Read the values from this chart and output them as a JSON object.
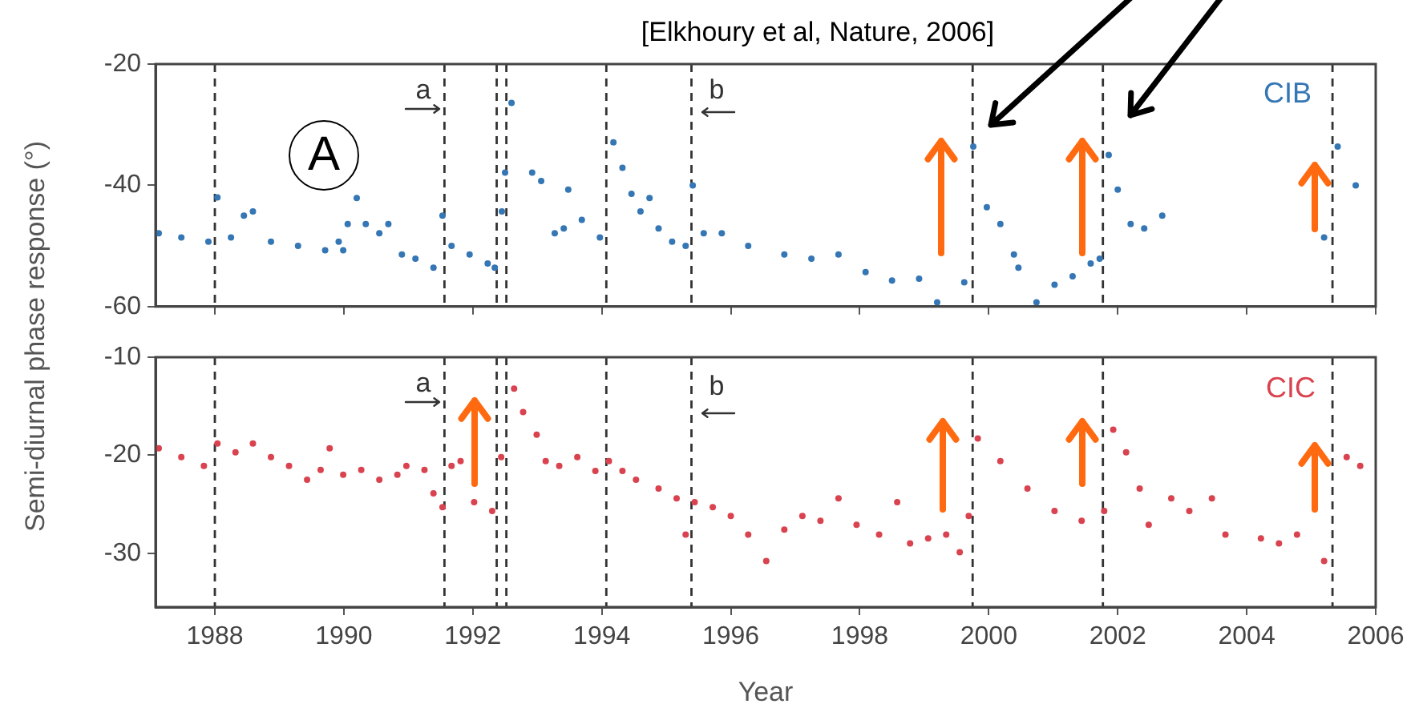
{
  "chart_data": [
    {
      "type": "scatter",
      "ylabel": "Semi-diurnal phase response (°)",
      "tick_labels": "y",
      "marker": "circle",
      "color": "#3576b4",
      "xlim": [
        1987.08,
        2006
      ],
      "xticks": [
        1988,
        1990,
        1992,
        1994,
        1996,
        1998,
        2000,
        2002,
        2004,
        2006
      ],
      "ylim": [
        -60,
        -20
      ],
      "yticks": [
        -60,
        -40,
        -20
      ],
      "x": [
        1987.13,
        1987.48,
        1987.9,
        1988.04,
        1988.25,
        1988.45,
        1988.59,
        1988.87,
        1989.29,
        1989.71,
        1989.92,
        1989.99,
        1990.06,
        1990.2,
        1990.34,
        1990.55,
        1990.69,
        1990.9,
        1991.11,
        1991.39,
        1991.53,
        1991.67,
        1991.95,
        1992.23,
        1992.34,
        1992.45,
        1992.5,
        1992.6,
        1992.92,
        1993.06,
        1993.27,
        1993.41,
        1993.48,
        1993.69,
        1993.97,
        1994.18,
        1994.32,
        1994.46,
        1994.6,
        1994.74,
        1994.88,
        1995.09,
        1995.3,
        1995.41,
        1995.58,
        1995.86,
        1996.27,
        1996.83,
        1997.25,
        1997.67,
        1998.09,
        1998.5,
        1998.92,
        1999.2,
        1999.62,
        1999.76,
        1999.97,
        2000.18,
        2000.39,
        2000.46,
        2000.74,
        2001.02,
        2001.3,
        2001.58,
        2001.72,
        2001.86,
        2002.0,
        2002.2,
        2002.41,
        2002.69,
        2005.2,
        2005.41,
        2005.69
      ],
      "values": [
        -47.9,
        -48.6,
        -49.3,
        -42,
        -48.6,
        -45,
        -44.3,
        -49.3,
        -50,
        -50.7,
        -49.3,
        -50.7,
        -46.4,
        -42.1,
        -46.4,
        -47.9,
        -46.4,
        -51.4,
        -52.1,
        -53.6,
        -45,
        -50,
        -51.4,
        -52.9,
        -53.6,
        -44.3,
        -37.9,
        -26.4,
        -37.9,
        -39.3,
        -47.9,
        -47.1,
        -40.7,
        -45.7,
        -48.6,
        -32.9,
        -37.1,
        -41.4,
        -44.3,
        -42.1,
        -47.1,
        -49.3,
        -50,
        -40,
        -47.9,
        -47.9,
        -50,
        -51.4,
        -52.1,
        -51.4,
        -54.3,
        -55.7,
        -55.4,
        -59.3,
        -56,
        -33.6,
        -43.6,
        -46.4,
        -51.4,
        -53.6,
        -59.3,
        -56.4,
        -55,
        -52.9,
        -52.1,
        -35,
        -40.7,
        -46.4,
        -47.1,
        -45,
        -48.6,
        -33.6,
        -40
      ],
      "ref_lines": [
        {
          "axis": "x",
          "value": 1988.0,
          "line_style": "dashed",
          "color": "#333333"
        },
        {
          "axis": "x",
          "value": 1991.56,
          "line_style": "dashed",
          "color": "#333333"
        },
        {
          "axis": "x",
          "value": 1992.37,
          "line_style": "dashed",
          "color": "#333333"
        },
        {
          "axis": "x",
          "value": 1992.52,
          "line_style": "dashed",
          "color": "#333333"
        },
        {
          "axis": "x",
          "value": 1994.07,
          "line_style": "dashed",
          "color": "#333333"
        },
        {
          "axis": "x",
          "value": 1995.39,
          "line_style": "dashed",
          "color": "#333333"
        },
        {
          "axis": "x",
          "value": 1999.75,
          "line_style": "dashed",
          "color": "#333333"
        },
        {
          "axis": "x",
          "value": 2001.77,
          "line_style": "dashed",
          "color": "#333333"
        },
        {
          "axis": "x",
          "value": 2005.33,
          "line_style": "dashed",
          "color": "#333333"
        }
      ],
      "annotations": [
        "a",
        "b",
        "CIB",
        "A",
        "[Elkhoury et al, Nature, 2006]"
      ]
    },
    {
      "type": "scatter",
      "xlabel": "Year",
      "marker": "circle",
      "color": "#d9434f",
      "xlim": [
        1987.08,
        2006
      ],
      "xticks": [
        1988,
        1990,
        1992,
        1994,
        1996,
        1998,
        2000,
        2002,
        2004,
        2006
      ],
      "ylim": [
        -35.5,
        -10
      ],
      "yticks": [
        -30,
        -20,
        -10
      ],
      "x": [
        1987.13,
        1987.48,
        1987.83,
        1988.04,
        1988.32,
        1988.59,
        1988.87,
        1989.15,
        1989.43,
        1989.64,
        1989.78,
        1989.99,
        1990.27,
        1990.55,
        1990.83,
        1990.97,
        1991.25,
        1991.39,
        1991.53,
        1991.67,
        1991.81,
        1992.02,
        1992.3,
        1992.44,
        1992.64,
        1992.78,
        1992.99,
        1993.13,
        1993.34,
        1993.62,
        1993.9,
        1994.11,
        1994.32,
        1994.53,
        1994.88,
        1995.16,
        1995.3,
        1995.44,
        1995.72,
        1996.0,
        1996.27,
        1996.55,
        1996.83,
        1997.11,
        1997.39,
        1997.67,
        1997.95,
        1998.3,
        1998.58,
        1998.78,
        1999.06,
        1999.34,
        1999.55,
        1999.69,
        1999.83,
        2000.18,
        2000.6,
        2001.02,
        2001.44,
        2001.79,
        2001.93,
        2002.13,
        2002.34,
        2002.48,
        2002.83,
        2003.11,
        2003.46,
        2003.67,
        2004.22,
        2004.5,
        2004.78,
        2005.2,
        2005.55,
        2005.76
      ],
      "values": [
        -19.3,
        -20.2,
        -21.1,
        -18.8,
        -19.7,
        -18.8,
        -20.2,
        -21.1,
        -22.5,
        -21.5,
        -19.3,
        -22,
        -21.5,
        -22.5,
        -22,
        -21.1,
        -21.5,
        -23.9,
        -25.3,
        -21.1,
        -20.6,
        -24.8,
        -25.7,
        -20.2,
        -13.2,
        -15.6,
        -17.9,
        -20.6,
        -21.1,
        -20.2,
        -21.6,
        -20.6,
        -21.6,
        -22.5,
        -23.4,
        -24.4,
        -28.1,
        -24.8,
        -25.3,
        -26.2,
        -28.1,
        -30.8,
        -27.6,
        -26.2,
        -26.7,
        -24.4,
        -27.1,
        -28.1,
        -24.8,
        -29,
        -28.5,
        -28.1,
        -29.9,
        -26.2,
        -18.3,
        -20.6,
        -23.4,
        -25.7,
        -26.7,
        -25.7,
        -17.4,
        -19.7,
        -23.4,
        -27.1,
        -24.4,
        -25.7,
        -24.4,
        -28.1,
        -28.5,
        -29,
        -28.1,
        -30.8,
        -20.2,
        -21.1
      ],
      "ref_lines": [
        {
          "axis": "x",
          "value": 1988.0,
          "line_style": "dashed",
          "color": "#333333"
        },
        {
          "axis": "x",
          "value": 1991.56,
          "line_style": "dashed",
          "color": "#333333"
        },
        {
          "axis": "x",
          "value": 1992.37,
          "line_style": "dashed",
          "color": "#333333"
        },
        {
          "axis": "x",
          "value": 1992.52,
          "line_style": "dashed",
          "color": "#333333"
        },
        {
          "axis": "x",
          "value": 1994.07,
          "line_style": "dashed",
          "color": "#333333"
        },
        {
          "axis": "x",
          "value": 1995.39,
          "line_style": "dashed",
          "color": "#333333"
        },
        {
          "axis": "x",
          "value": 1999.75,
          "line_style": "dashed",
          "color": "#333333"
        },
        {
          "axis": "x",
          "value": 2001.77,
          "line_style": "dashed",
          "color": "#333333"
        },
        {
          "axis": "x",
          "value": 2005.33,
          "line_style": "dashed",
          "color": "#333333"
        }
      ],
      "annotations": [
        "a",
        "b",
        "CIC"
      ]
    }
  ]
}
